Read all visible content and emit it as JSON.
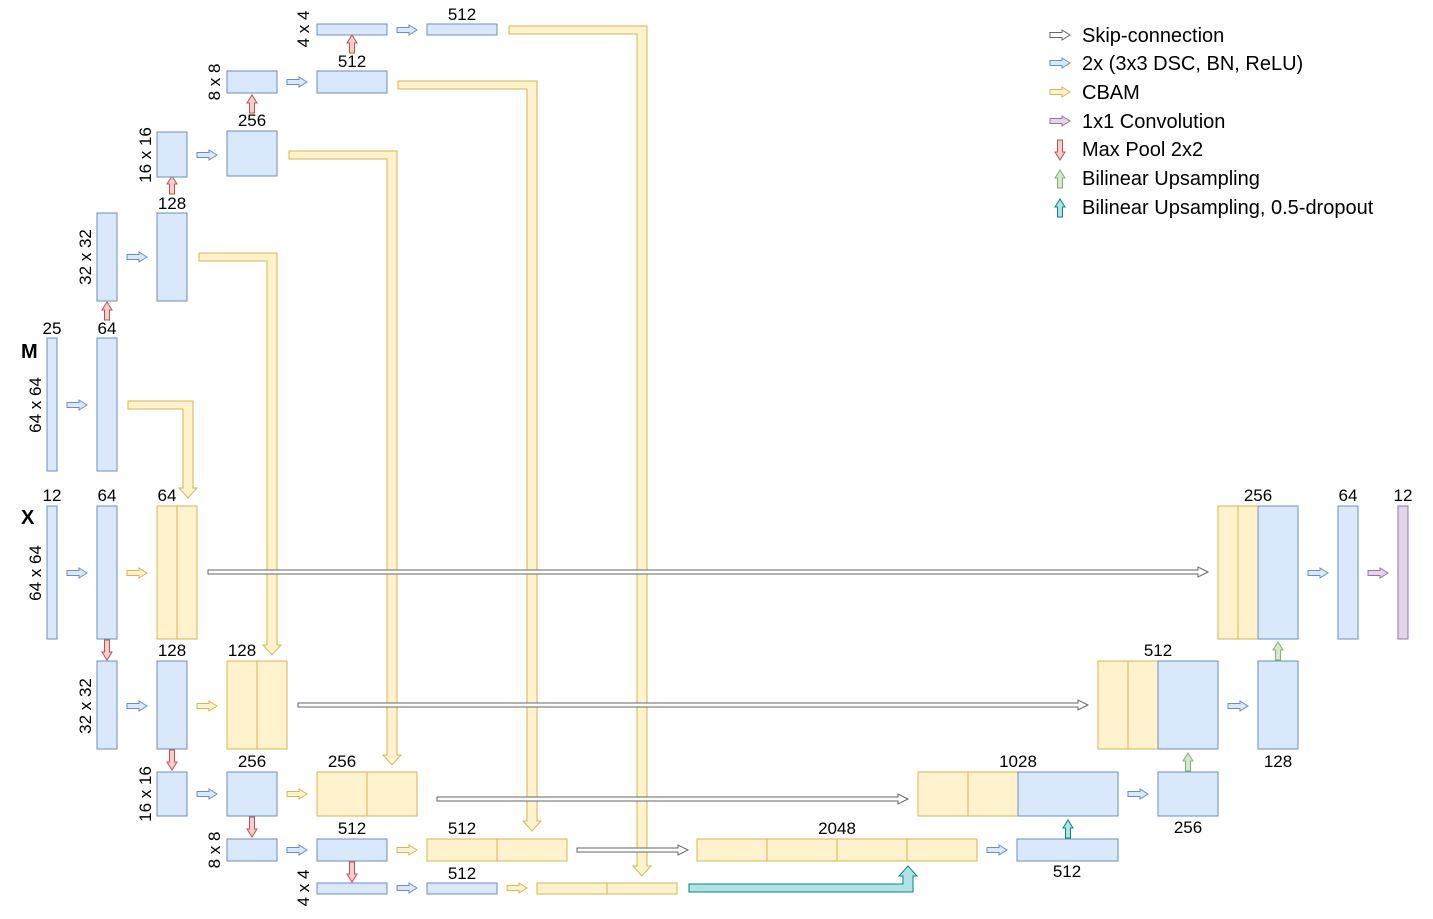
{
  "colors": {
    "blue_fill": "#dae8fc",
    "blue_stroke": "#6c8ebf",
    "yellow_fill": "#fff2cc",
    "yellow_stroke": "#d6b656",
    "purple_fill": "#e1d5e7",
    "purple_stroke": "#9673a6",
    "red_fill": "#f8cecc",
    "red_stroke": "#b85450",
    "green_fill": "#d5e8d4",
    "green_stroke": "#82b366",
    "teal_fill": "#b0e3e6",
    "teal_stroke": "#0e8088",
    "gray_fill": "#ffffff",
    "gray_stroke": "#666666"
  },
  "inputs": {
    "m": "M",
    "x": "X"
  },
  "legend": [
    {
      "label": "Skip-connection",
      "icon": "gray-arrow-icon"
    },
    {
      "label": "2x (3x3 DSC, BN, ReLU)",
      "icon": "blue-arrow-icon"
    },
    {
      "label": "CBAM",
      "icon": "yellow-arrow-icon"
    },
    {
      "label": "1x1 Convolution",
      "icon": "purple-arrow-icon"
    },
    {
      "label": "Max Pool 2x2",
      "icon": "red-down-arrow-icon"
    },
    {
      "label": "Bilinear Upsampling",
      "icon": "green-up-arrow-icon"
    },
    {
      "label": "Bilinear Upsampling, 0.5-dropout",
      "icon": "teal-up-arrow-icon"
    }
  ],
  "resolutions": {
    "m_64": "64 x 64",
    "m_32": "32 x 32",
    "m_16": "16 x 16",
    "m_8": "8 x 8",
    "m_4": "4 x 4",
    "x_64": "64 x 64",
    "x_32": "32 x 32",
    "x_16": "16 x 16",
    "x_8": "8 x 8",
    "x_4": "4 x 4"
  },
  "channels": {
    "m_in": "25",
    "m_64": "64",
    "m_128": "128",
    "m_256": "256",
    "m_512a": "512",
    "m_512b": "512",
    "x_in": "12",
    "x_64": "64",
    "x_cbam_64": "64",
    "x_128": "128",
    "x_cbam_128": "128",
    "x_256": "256",
    "x_cbam_256": "256",
    "x_512": "512",
    "x_cbam_512": "512",
    "x_512b": "512",
    "concat_2048": "2048",
    "dec_512": "512",
    "concat_1028": "1028",
    "dec_256": "256",
    "concat_512": "512",
    "dec_128": "128",
    "concat_256": "256",
    "dec_64": "64",
    "out_12": "12"
  }
}
